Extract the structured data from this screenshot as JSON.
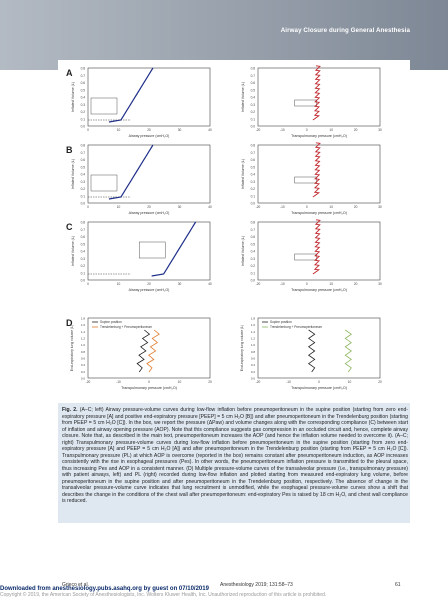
{
  "header": {
    "title": "Airway Closure during General Anesthesia"
  },
  "panels": {
    "A": {
      "label": "A"
    },
    "B": {
      "label": "B"
    },
    "C": {
      "label": "C"
    },
    "D": {
      "label": "D"
    }
  },
  "axes": {
    "left_ylabel": "Inflated Volume (L)",
    "right_ylabel": "Inflated Volume (L)",
    "left_xlabel": "Airway pressure (cmH₂O)",
    "right_xlabel": "Transpulmonary pressure (cmH₂O)",
    "d_left_ylabel": "End-expiratory lung volume (L)",
    "d_right_ylabel": "End-expiratory lung volume (L)",
    "d_left_xlabel": "Transpulmonary pressure (cmH₂O)",
    "d_right_xlabel": "Transpulmonary pressure (cmH₂O)",
    "y_ticks": [
      "0.0",
      "0.1",
      "0.2",
      "0.3",
      "0.4",
      "0.5",
      "0.6",
      "0.7",
      "0.8"
    ],
    "x_ticks_left": [
      "0",
      "10",
      "20",
      "30",
      "40"
    ],
    "x_ticks_right": [
      "-20",
      "-10",
      "0",
      "10",
      "20",
      "30"
    ],
    "d_y_ticks": [
      "0.0",
      "0.2",
      "0.4",
      "0.6",
      "0.8",
      "1.0",
      "1.2",
      "1.4",
      "1.6",
      "1.8"
    ],
    "d_x_ticks": [
      "-20",
      "-10",
      "0",
      "10",
      "20"
    ]
  },
  "legends": {
    "d_left": [
      "Supine position",
      "Trendelenburg + Pneumoperitoneum"
    ],
    "d_right": [
      "Supine position",
      "Trendelenburg + Pneumoperitoneum"
    ]
  },
  "caption": {
    "label": "Fig. 2.",
    "text": " (A–C; left) Airway pressure-volume curves during low-flow inflation before pneumoperitoneum in the supine position (starting from zero end-expiratory pressure [A] and positive end-expiratory pressure [PEEP] = 5 cm H₂O [B]) and after pneumoperitoneum in the Trendelenburg position (starting from PEEP = 5 cm H₂O [C]). In the box, we report the pressure (ΔPaw) and volume changes along with the corresponding compliance (C) between start of inflation and airway opening pressure (AOP). Note that this compliance suggests gas compression in an occluded circuit and, hence, complete airway closure. Note that, as described in the main text, pneumoperitoneum increases the AOP (and hence the inflation volume needed to overcome it). (A–C; right) Transpulmonary pressure-volume curves during low-flow inflation before pneumoperitoneum in the supine position (starting from zero end-expiratory pressure [A] and PEEP = 5 cm H₂O [A]) and after pneumoperitoneum in the Trendelenburg position (starting from PEEP = 5 cm H₂O [C]). Transpulmonary pressure (PL) at which AOP is overcome (reported in the box) remains constant after pneumoperitoneum induction, as AOP increases consistently with the rise in esophageal pressures (Pes). In other words, the pneumoperitoneum inflation pressure is transmitted to the pleural space, thus increasing Pes and AOP in a consistent manner. (D) Multiple pressure-volume curves of the transalveolar pressure (i.e., transpulmonary pressure) with patient airways, left) and PL (right) recorded during low-flow inflation and plotted starting from measured end-expiratory lung volume, before pneumoperitoneum in the supine position and after pneumoperitoneum in the Trendelenburg position, respectively. The absence of change in the transalveolar pressure-volume curve indicates that lung recruitment is unmodified, while the esophageal pressure-volume curves show a shift that describes the change in the conditions of the chest wall after pneumoperitoneum: end-expiratory Pes is raised by 18 cm H₂O, and chest wall compliance is reduced."
  },
  "footer": {
    "authors": "Grieco et al.",
    "journal": "Anesthesiology 2019; 131:58–73",
    "page": "61",
    "download": "Downloaded from anesthesiology.pubs.asahq.org by guest on 07/10/2019",
    "copyright": "Copyright © 2019, the American Society of Anesthesiologists, Inc. Wolters Kluwer Health, Inc. Unauthorized reproduction of this article is prohibited."
  },
  "colors": {
    "header_bg": "#9aa2ad",
    "caption_bg": "#dfe8f1",
    "curve_left": "#1f2f8a",
    "curve_right": "#c0262d",
    "d_black": "#222222",
    "d_orange": "#e07b2c",
    "d_green": "#8bb55e"
  }
}
